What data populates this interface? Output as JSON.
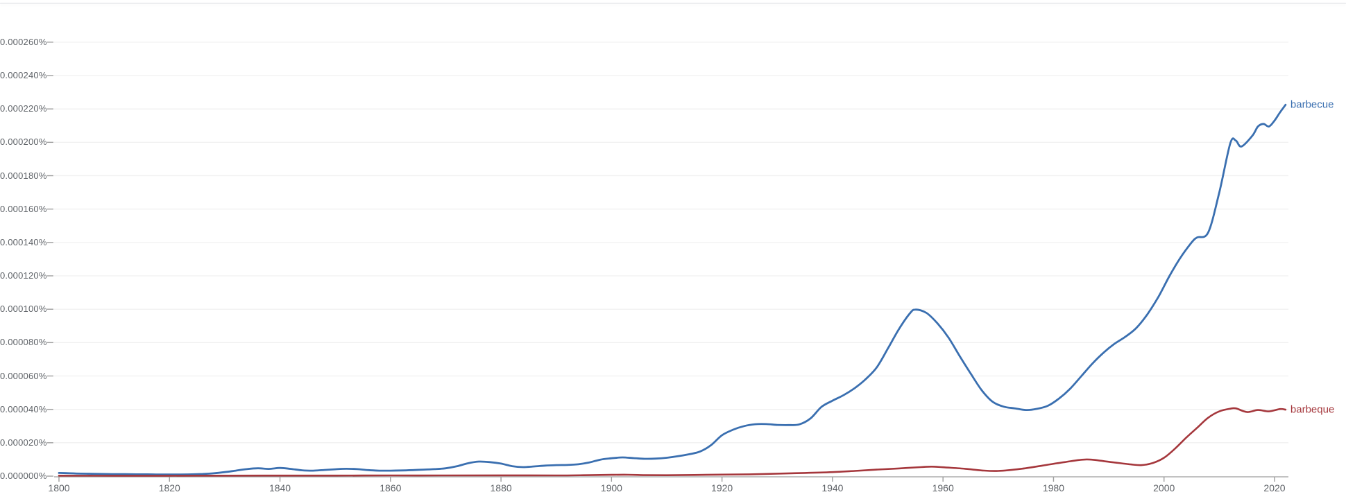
{
  "chart_data": {
    "type": "line",
    "title": "",
    "xlabel": "",
    "ylabel": "",
    "grid": "horizontal",
    "legend_position": "end-of-line",
    "x_tick_years": [
      1800,
      1820,
      1840,
      1860,
      1880,
      1900,
      1920,
      1940,
      1960,
      1980,
      2000,
      2020
    ],
    "x_range_years": [
      1800,
      2022
    ],
    "value_unit": "1e-6 percent",
    "y_tick_interval_e6": 20,
    "y_ticks": [
      {
        "value_e6": 0,
        "label": "0.000000%"
      },
      {
        "value_e6": 20,
        "label": "0.000020%"
      },
      {
        "value_e6": 40,
        "label": "0.000040%"
      },
      {
        "value_e6": 60,
        "label": "0.000060%"
      },
      {
        "value_e6": 80,
        "label": "0.000080%"
      },
      {
        "value_e6": 100,
        "label": "0.000100%"
      },
      {
        "value_e6": 120,
        "label": "0.000120%"
      },
      {
        "value_e6": 140,
        "label": "0.000140%"
      },
      {
        "value_e6": 160,
        "label": "0.000160%"
      },
      {
        "value_e6": 180,
        "label": "0.000180%"
      },
      {
        "value_e6": 200,
        "label": "0.000200%"
      },
      {
        "value_e6": 220,
        "label": "0.000220%"
      },
      {
        "value_e6": 240,
        "label": "0.000240%"
      },
      {
        "value_e6": 260,
        "label": "0.000260%"
      }
    ],
    "series": [
      {
        "name": "barbecue",
        "color": "#3a6fb0",
        "points": [
          [
            1800,
            1.9
          ],
          [
            1802,
            1.7
          ],
          [
            1804,
            1.5
          ],
          [
            1806,
            1.4
          ],
          [
            1808,
            1.3
          ],
          [
            1810,
            1.2
          ],
          [
            1812,
            1.2
          ],
          [
            1814,
            1.1
          ],
          [
            1816,
            1.1
          ],
          [
            1818,
            1.0
          ],
          [
            1820,
            1.0
          ],
          [
            1822,
            1.0
          ],
          [
            1824,
            1.1
          ],
          [
            1826,
            1.3
          ],
          [
            1828,
            1.7
          ],
          [
            1830,
            2.4
          ],
          [
            1832,
            3.3
          ],
          [
            1834,
            4.2
          ],
          [
            1836,
            4.7
          ],
          [
            1838,
            4.3
          ],
          [
            1840,
            4.9
          ],
          [
            1842,
            4.3
          ],
          [
            1844,
            3.5
          ],
          [
            1846,
            3.3
          ],
          [
            1848,
            3.7
          ],
          [
            1850,
            4.1
          ],
          [
            1852,
            4.4
          ],
          [
            1854,
            4.2
          ],
          [
            1856,
            3.6
          ],
          [
            1858,
            3.3
          ],
          [
            1860,
            3.3
          ],
          [
            1862,
            3.4
          ],
          [
            1864,
            3.6
          ],
          [
            1866,
            3.9
          ],
          [
            1868,
            4.2
          ],
          [
            1870,
            4.7
          ],
          [
            1872,
            5.9
          ],
          [
            1874,
            7.7
          ],
          [
            1876,
            8.7
          ],
          [
            1878,
            8.4
          ],
          [
            1880,
            7.5
          ],
          [
            1882,
            6.0
          ],
          [
            1884,
            5.4
          ],
          [
            1886,
            5.8
          ],
          [
            1888,
            6.3
          ],
          [
            1890,
            6.6
          ],
          [
            1892,
            6.7
          ],
          [
            1894,
            7.1
          ],
          [
            1896,
            8.2
          ],
          [
            1898,
            9.9
          ],
          [
            1900,
            10.7
          ],
          [
            1902,
            11.2
          ],
          [
            1904,
            10.8
          ],
          [
            1906,
            10.4
          ],
          [
            1908,
            10.5
          ],
          [
            1910,
            11.0
          ],
          [
            1912,
            11.9
          ],
          [
            1914,
            13.1
          ],
          [
            1916,
            14.7
          ],
          [
            1918,
            18.5
          ],
          [
            1920,
            24.5
          ],
          [
            1922,
            27.8
          ],
          [
            1924,
            30.0
          ],
          [
            1926,
            31.1
          ],
          [
            1928,
            31.2
          ],
          [
            1930,
            30.7
          ],
          [
            1932,
            30.6
          ],
          [
            1934,
            31.0
          ],
          [
            1936,
            34.5
          ],
          [
            1938,
            41.5
          ],
          [
            1940,
            45.2
          ],
          [
            1942,
            48.5
          ],
          [
            1944,
            52.7
          ],
          [
            1946,
            58.1
          ],
          [
            1948,
            65.1
          ],
          [
            1950,
            76.3
          ],
          [
            1952,
            88.0
          ],
          [
            1954,
            97.5
          ],
          [
            1955,
            99.8
          ],
          [
            1957,
            97.8
          ],
          [
            1959,
            91.5
          ],
          [
            1961,
            83.0
          ],
          [
            1963,
            72.0
          ],
          [
            1965,
            61.5
          ],
          [
            1967,
            51.5
          ],
          [
            1969,
            44.5
          ],
          [
            1971,
            41.6
          ],
          [
            1973,
            40.6
          ],
          [
            1975,
            39.6
          ],
          [
            1977,
            40.3
          ],
          [
            1979,
            42.2
          ],
          [
            1981,
            46.5
          ],
          [
            1983,
            52.3
          ],
          [
            1985,
            59.8
          ],
          [
            1987,
            67.3
          ],
          [
            1989,
            73.8
          ],
          [
            1991,
            79.2
          ],
          [
            1993,
            83.5
          ],
          [
            1995,
            88.8
          ],
          [
            1997,
            97.0
          ],
          [
            1999,
            107.5
          ],
          [
            2001,
            120.0
          ],
          [
            2003,
            131.0
          ],
          [
            2005,
            140.0
          ],
          [
            2006,
            143.0
          ],
          [
            2008,
            146.0
          ],
          [
            2010,
            170.0
          ],
          [
            2012,
            199.5
          ],
          [
            2013,
            201.0
          ],
          [
            2014,
            197.5
          ],
          [
            2016,
            204.0
          ],
          [
            2017,
            209.5
          ],
          [
            2018,
            211.0
          ],
          [
            2019,
            209.5
          ],
          [
            2020,
            213.0
          ],
          [
            2021,
            218.0
          ],
          [
            2022,
            222.5
          ]
        ]
      },
      {
        "name": "barbeque",
        "color": "#a5373c",
        "points": [
          [
            1800,
            0.3
          ],
          [
            1810,
            0.25
          ],
          [
            1820,
            0.25
          ],
          [
            1830,
            0.3
          ],
          [
            1840,
            0.35
          ],
          [
            1850,
            0.35
          ],
          [
            1860,
            0.4
          ],
          [
            1870,
            0.4
          ],
          [
            1880,
            0.45
          ],
          [
            1890,
            0.4
          ],
          [
            1896,
            0.6
          ],
          [
            1900,
            0.8
          ],
          [
            1903,
            0.85
          ],
          [
            1906,
            0.6
          ],
          [
            1910,
            0.55
          ],
          [
            1915,
            0.7
          ],
          [
            1920,
            0.9
          ],
          [
            1925,
            1.1
          ],
          [
            1930,
            1.5
          ],
          [
            1935,
            1.9
          ],
          [
            1940,
            2.4
          ],
          [
            1944,
            3.1
          ],
          [
            1948,
            3.9
          ],
          [
            1952,
            4.6
          ],
          [
            1956,
            5.4
          ],
          [
            1958,
            5.7
          ],
          [
            1960,
            5.3
          ],
          [
            1964,
            4.4
          ],
          [
            1967,
            3.4
          ],
          [
            1970,
            3.1
          ],
          [
            1974,
            4.3
          ],
          [
            1978,
            6.3
          ],
          [
            1982,
            8.4
          ],
          [
            1986,
            10.0
          ],
          [
            1990,
            8.6
          ],
          [
            1994,
            7.0
          ],
          [
            1996,
            6.6
          ],
          [
            1998,
            7.9
          ],
          [
            2000,
            11.0
          ],
          [
            2002,
            16.5
          ],
          [
            2004,
            23.0
          ],
          [
            2006,
            29.0
          ],
          [
            2008,
            35.0
          ],
          [
            2010,
            38.8
          ],
          [
            2012,
            40.4
          ],
          [
            2013,
            40.6
          ],
          [
            2015,
            38.4
          ],
          [
            2017,
            39.6
          ],
          [
            2019,
            38.8
          ],
          [
            2021,
            40.2
          ],
          [
            2022,
            39.8
          ]
        ]
      }
    ]
  },
  "colors": {
    "background": "#ffffff",
    "gridline": "#f0f0f0",
    "axis": "#9e9e9e",
    "tick_label": "#5f6368",
    "top_divider": "#dadce0",
    "series_blue": "#3a6fb0",
    "series_red": "#a5373c"
  }
}
